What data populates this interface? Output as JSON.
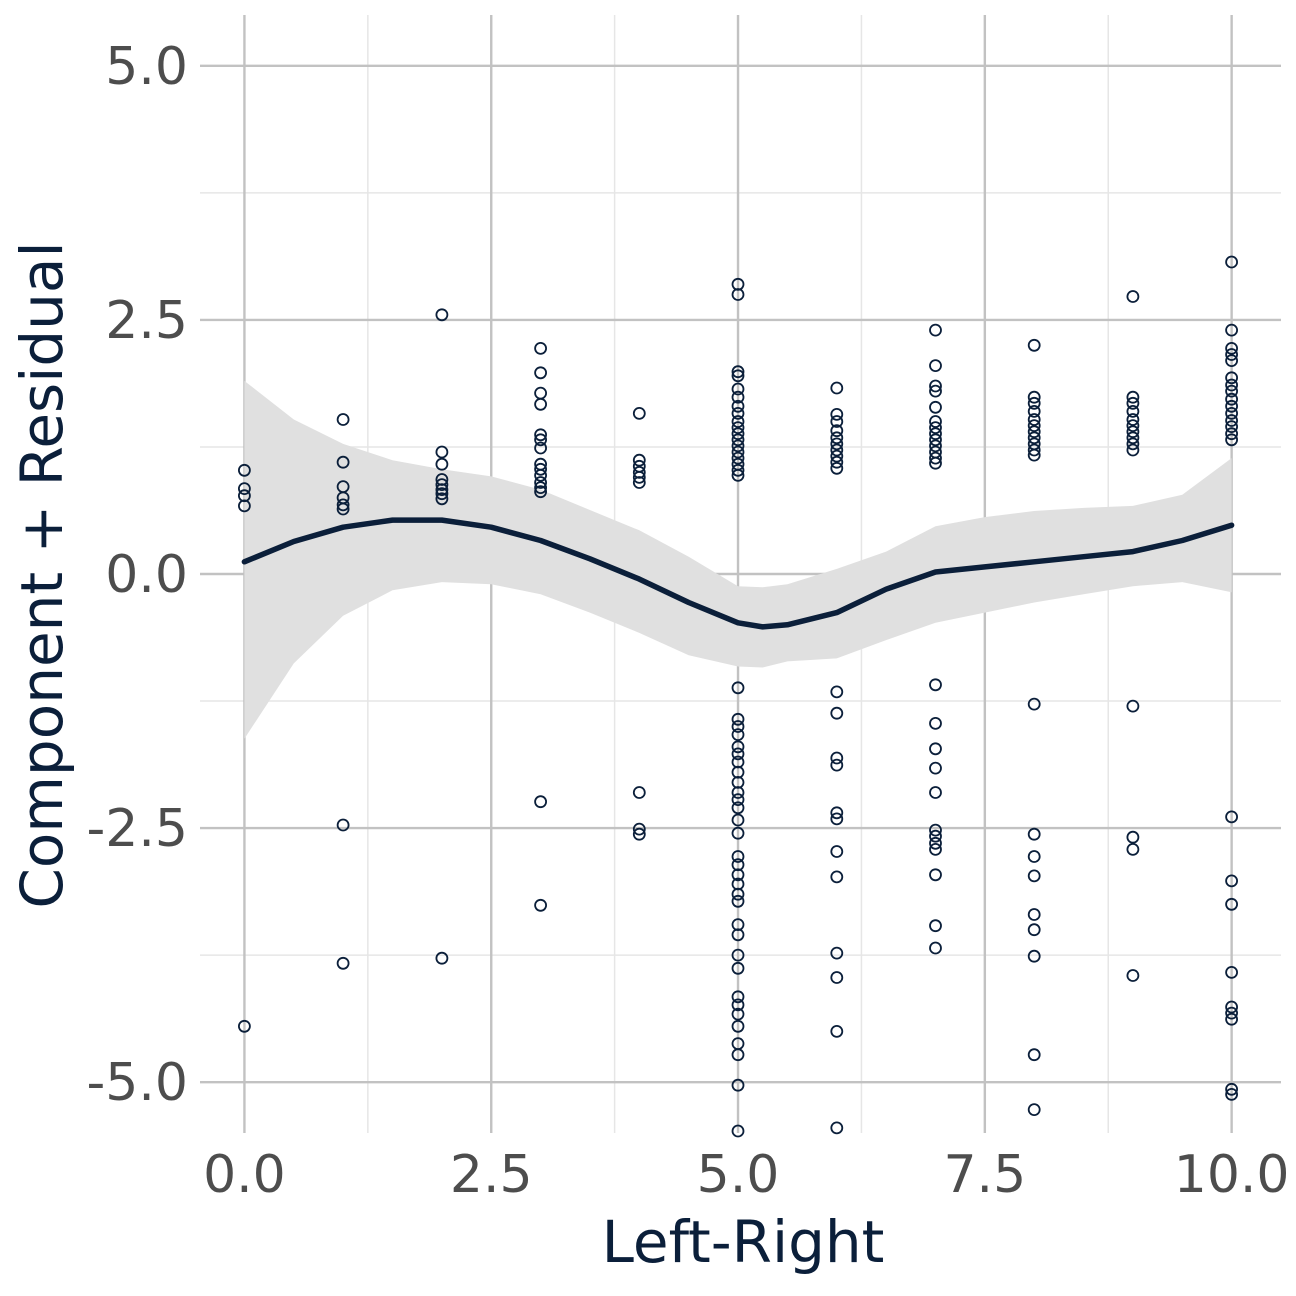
{
  "chart_data": {
    "type": "scatter",
    "title": "",
    "xlabel": "Left-Right",
    "ylabel": "Component + Residual",
    "xlim": [
      -0.45,
      10.5
    ],
    "ylim": [
      -5.5,
      5.5
    ],
    "x_ticks": [
      0.0,
      2.5,
      5.0,
      7.5,
      10.0
    ],
    "x_tick_labels": [
      "0.0",
      "2.5",
      "5.0",
      "7.5",
      "10.0"
    ],
    "y_ticks": [
      -5.0,
      -2.5,
      0.0,
      2.5,
      5.0
    ],
    "y_tick_labels": [
      "-5.0",
      "-2.5",
      "0.0",
      "2.5",
      "5.0"
    ],
    "grid": true,
    "colors": {
      "points": "#0b1f3a",
      "smooth_line": "#0b1f3a",
      "confidence_band": "#e0e0e0",
      "grid_major": "#c2c2c2",
      "grid_minor": "#e6e6e6"
    },
    "points": [
      {
        "x": 0,
        "y": 1.02
      },
      {
        "x": 0,
        "y": 0.84
      },
      {
        "x": 0,
        "y": 0.77
      },
      {
        "x": 0,
        "y": 0.67
      },
      {
        "x": 0,
        "y": -4.45
      },
      {
        "x": 1,
        "y": 1.52
      },
      {
        "x": 1,
        "y": 1.1
      },
      {
        "x": 1,
        "y": 0.86
      },
      {
        "x": 1,
        "y": 0.75
      },
      {
        "x": 1,
        "y": 0.68
      },
      {
        "x": 1,
        "y": 0.64
      },
      {
        "x": 1,
        "y": -2.47
      },
      {
        "x": 1,
        "y": -3.83
      },
      {
        "x": 2,
        "y": 2.55
      },
      {
        "x": 2,
        "y": 1.2
      },
      {
        "x": 2,
        "y": 1.08
      },
      {
        "x": 2,
        "y": 0.93
      },
      {
        "x": 2,
        "y": 0.88
      },
      {
        "x": 2,
        "y": 0.83
      },
      {
        "x": 2,
        "y": 0.79
      },
      {
        "x": 2,
        "y": 0.74
      },
      {
        "x": 2,
        "y": -3.78
      },
      {
        "x": 3,
        "y": 2.22
      },
      {
        "x": 3,
        "y": 1.98
      },
      {
        "x": 3,
        "y": 1.78
      },
      {
        "x": 3,
        "y": 1.67
      },
      {
        "x": 3,
        "y": 1.37
      },
      {
        "x": 3,
        "y": 1.32
      },
      {
        "x": 3,
        "y": 1.24
      },
      {
        "x": 3,
        "y": 1.08
      },
      {
        "x": 3,
        "y": 1.03
      },
      {
        "x": 3,
        "y": 0.97
      },
      {
        "x": 3,
        "y": 0.9
      },
      {
        "x": 3,
        "y": 0.85
      },
      {
        "x": 3,
        "y": 0.81
      },
      {
        "x": 3,
        "y": -2.24
      },
      {
        "x": 3,
        "y": -3.26
      },
      {
        "x": 4,
        "y": 1.58
      },
      {
        "x": 4,
        "y": 1.12
      },
      {
        "x": 4,
        "y": 1.06
      },
      {
        "x": 4,
        "y": 1.0
      },
      {
        "x": 4,
        "y": 0.95
      },
      {
        "x": 4,
        "y": 0.9
      },
      {
        "x": 4,
        "y": -2.15
      },
      {
        "x": 4,
        "y": -2.51
      },
      {
        "x": 4,
        "y": -2.56
      },
      {
        "x": 5,
        "y": 2.85
      },
      {
        "x": 5,
        "y": 2.75
      },
      {
        "x": 5,
        "y": 1.99
      },
      {
        "x": 5,
        "y": 1.95
      },
      {
        "x": 5,
        "y": 1.82
      },
      {
        "x": 5,
        "y": 1.74
      },
      {
        "x": 5,
        "y": 1.65
      },
      {
        "x": 5,
        "y": 1.58
      },
      {
        "x": 5,
        "y": 1.5
      },
      {
        "x": 5,
        "y": 1.44
      },
      {
        "x": 5,
        "y": 1.38
      },
      {
        "x": 5,
        "y": 1.32
      },
      {
        "x": 5,
        "y": 1.26
      },
      {
        "x": 5,
        "y": 1.2
      },
      {
        "x": 5,
        "y": 1.14
      },
      {
        "x": 5,
        "y": 1.08
      },
      {
        "x": 5,
        "y": 1.02
      },
      {
        "x": 5,
        "y": 0.97
      },
      {
        "x": 5,
        "y": -1.12
      },
      {
        "x": 5,
        "y": -1.43
      },
      {
        "x": 5,
        "y": -1.5
      },
      {
        "x": 5,
        "y": -1.58
      },
      {
        "x": 5,
        "y": -1.7
      },
      {
        "x": 5,
        "y": -1.77
      },
      {
        "x": 5,
        "y": -1.85
      },
      {
        "x": 5,
        "y": -1.95
      },
      {
        "x": 5,
        "y": -2.05
      },
      {
        "x": 5,
        "y": -2.15
      },
      {
        "x": 5,
        "y": -2.22
      },
      {
        "x": 5,
        "y": -2.3
      },
      {
        "x": 5,
        "y": -2.42
      },
      {
        "x": 5,
        "y": -2.55
      },
      {
        "x": 5,
        "y": -2.78
      },
      {
        "x": 5,
        "y": -2.86
      },
      {
        "x": 5,
        "y": -2.96
      },
      {
        "x": 5,
        "y": -3.05
      },
      {
        "x": 5,
        "y": -3.15
      },
      {
        "x": 5,
        "y": -3.22
      },
      {
        "x": 5,
        "y": -3.45
      },
      {
        "x": 5,
        "y": -3.55
      },
      {
        "x": 5,
        "y": -3.75
      },
      {
        "x": 5,
        "y": -3.88
      },
      {
        "x": 5,
        "y": -4.16
      },
      {
        "x": 5,
        "y": -4.24
      },
      {
        "x": 5,
        "y": -4.33
      },
      {
        "x": 5,
        "y": -4.45
      },
      {
        "x": 5,
        "y": -4.62
      },
      {
        "x": 5,
        "y": -4.73
      },
      {
        "x": 5,
        "y": -5.03
      },
      {
        "x": 5,
        "y": -5.48
      },
      {
        "x": 6,
        "y": 1.83
      },
      {
        "x": 6,
        "y": 1.57
      },
      {
        "x": 6,
        "y": 1.5
      },
      {
        "x": 6,
        "y": 1.41
      },
      {
        "x": 6,
        "y": 1.34
      },
      {
        "x": 6,
        "y": 1.28
      },
      {
        "x": 6,
        "y": 1.22
      },
      {
        "x": 6,
        "y": 1.16
      },
      {
        "x": 6,
        "y": 1.1
      },
      {
        "x": 6,
        "y": 1.04
      },
      {
        "x": 6,
        "y": -1.16
      },
      {
        "x": 6,
        "y": -1.37
      },
      {
        "x": 6,
        "y": -1.81
      },
      {
        "x": 6,
        "y": -1.88
      },
      {
        "x": 6,
        "y": -2.35
      },
      {
        "x": 6,
        "y": -2.41
      },
      {
        "x": 6,
        "y": -2.73
      },
      {
        "x": 6,
        "y": -2.98
      },
      {
        "x": 6,
        "y": -3.73
      },
      {
        "x": 6,
        "y": -3.97
      },
      {
        "x": 6,
        "y": -4.5
      },
      {
        "x": 6,
        "y": -5.45
      },
      {
        "x": 7,
        "y": 2.4
      },
      {
        "x": 7,
        "y": 2.05
      },
      {
        "x": 7,
        "y": 1.85
      },
      {
        "x": 7,
        "y": 1.8
      },
      {
        "x": 7,
        "y": 1.64
      },
      {
        "x": 7,
        "y": 1.5
      },
      {
        "x": 7,
        "y": 1.44
      },
      {
        "x": 7,
        "y": 1.38
      },
      {
        "x": 7,
        "y": 1.32
      },
      {
        "x": 7,
        "y": 1.26
      },
      {
        "x": 7,
        "y": 1.2
      },
      {
        "x": 7,
        "y": 1.14
      },
      {
        "x": 7,
        "y": 1.09
      },
      {
        "x": 7,
        "y": -1.09
      },
      {
        "x": 7,
        "y": -1.47
      },
      {
        "x": 7,
        "y": -1.72
      },
      {
        "x": 7,
        "y": -1.91
      },
      {
        "x": 7,
        "y": -2.15
      },
      {
        "x": 7,
        "y": -2.52
      },
      {
        "x": 7,
        "y": -2.58
      },
      {
        "x": 7,
        "y": -2.65
      },
      {
        "x": 7,
        "y": -2.71
      },
      {
        "x": 7,
        "y": -2.96
      },
      {
        "x": 7,
        "y": -3.46
      },
      {
        "x": 7,
        "y": -3.68
      },
      {
        "x": 8,
        "y": 2.25
      },
      {
        "x": 8,
        "y": 1.74
      },
      {
        "x": 8,
        "y": 1.68
      },
      {
        "x": 8,
        "y": 1.6
      },
      {
        "x": 8,
        "y": 1.52
      },
      {
        "x": 8,
        "y": 1.46
      },
      {
        "x": 8,
        "y": 1.4
      },
      {
        "x": 8,
        "y": 1.34
      },
      {
        "x": 8,
        "y": 1.28
      },
      {
        "x": 8,
        "y": 1.22
      },
      {
        "x": 8,
        "y": 1.17
      },
      {
        "x": 8,
        "y": -1.28
      },
      {
        "x": 8,
        "y": -2.56
      },
      {
        "x": 8,
        "y": -2.78
      },
      {
        "x": 8,
        "y": -2.97
      },
      {
        "x": 8,
        "y": -3.35
      },
      {
        "x": 8,
        "y": -3.5
      },
      {
        "x": 8,
        "y": -3.76
      },
      {
        "x": 8,
        "y": -4.73
      },
      {
        "x": 8,
        "y": -5.27
      },
      {
        "x": 9,
        "y": 2.73
      },
      {
        "x": 9,
        "y": 1.74
      },
      {
        "x": 9,
        "y": 1.68
      },
      {
        "x": 9,
        "y": 1.6
      },
      {
        "x": 9,
        "y": 1.52
      },
      {
        "x": 9,
        "y": 1.46
      },
      {
        "x": 9,
        "y": 1.4
      },
      {
        "x": 9,
        "y": 1.34
      },
      {
        "x": 9,
        "y": 1.28
      },
      {
        "x": 9,
        "y": 1.22
      },
      {
        "x": 9,
        "y": -1.3
      },
      {
        "x": 9,
        "y": -2.59
      },
      {
        "x": 9,
        "y": -2.71
      },
      {
        "x": 9,
        "y": -3.95
      },
      {
        "x": 10,
        "y": 3.07
      },
      {
        "x": 10,
        "y": 2.4
      },
      {
        "x": 10,
        "y": 2.22
      },
      {
        "x": 10,
        "y": 2.16
      },
      {
        "x": 10,
        "y": 2.1
      },
      {
        "x": 10,
        "y": 1.93
      },
      {
        "x": 10,
        "y": 1.86
      },
      {
        "x": 10,
        "y": 1.8
      },
      {
        "x": 10,
        "y": 1.72
      },
      {
        "x": 10,
        "y": 1.65
      },
      {
        "x": 10,
        "y": 1.58
      },
      {
        "x": 10,
        "y": 1.51
      },
      {
        "x": 10,
        "y": 1.45
      },
      {
        "x": 10,
        "y": 1.38
      },
      {
        "x": 10,
        "y": 1.32
      },
      {
        "x": 10,
        "y": -2.39
      },
      {
        "x": 10,
        "y": -3.02
      },
      {
        "x": 10,
        "y": -3.25
      },
      {
        "x": 10,
        "y": -3.92
      },
      {
        "x": 10,
        "y": -4.26
      },
      {
        "x": 10,
        "y": -4.32
      },
      {
        "x": 10,
        "y": -4.38
      },
      {
        "x": 10,
        "y": -5.07
      },
      {
        "x": 10,
        "y": -5.12
      }
    ],
    "smooth": {
      "x": [
        0.0,
        0.5,
        1.0,
        1.5,
        2.0,
        2.5,
        3.0,
        3.5,
        4.0,
        4.5,
        5.0,
        5.25,
        5.5,
        6.0,
        6.5,
        7.0,
        7.5,
        8.0,
        8.5,
        9.0,
        9.5,
        10.0
      ],
      "y": [
        0.12,
        0.32,
        0.46,
        0.53,
        0.53,
        0.46,
        0.33,
        0.15,
        -0.05,
        -0.28,
        -0.48,
        -0.52,
        -0.5,
        -0.38,
        -0.15,
        0.02,
        0.07,
        0.12,
        0.17,
        0.22,
        0.33,
        0.48
      ],
      "lower": [
        -1.62,
        -0.88,
        -0.41,
        -0.16,
        -0.08,
        -0.1,
        -0.2,
        -0.38,
        -0.58,
        -0.8,
        -0.91,
        -0.92,
        -0.86,
        -0.83,
        -0.65,
        -0.48,
        -0.38,
        -0.28,
        -0.2,
        -0.12,
        -0.08,
        -0.18
      ],
      "upper": [
        1.9,
        1.52,
        1.28,
        1.12,
        1.03,
        0.96,
        0.83,
        0.63,
        0.43,
        0.17,
        -0.12,
        -0.13,
        -0.1,
        0.05,
        0.22,
        0.47,
        0.56,
        0.62,
        0.65,
        0.67,
        0.78,
        1.14
      ]
    }
  }
}
